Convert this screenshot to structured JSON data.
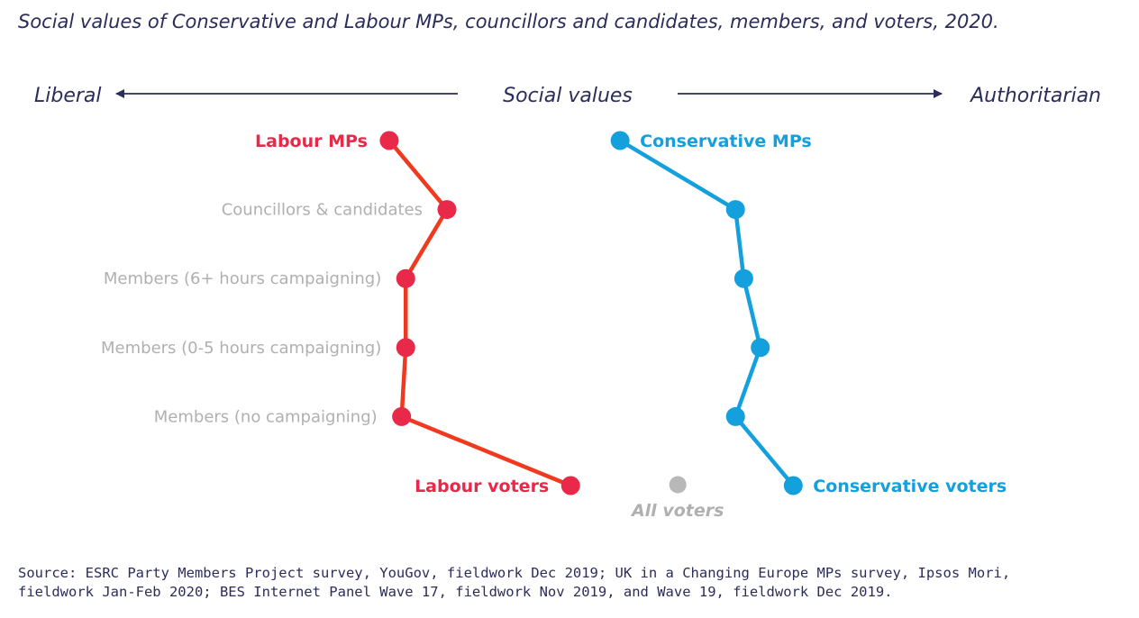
{
  "title": "Social values of Conservative and Labour MPs, councillors and candidates, members, and voters, 2020.",
  "source": [
    "Source: ESRC Party Members Project survey, YouGov, fieldwork Dec 2019; UK in a Changing Europe MPs survey, Ipsos Mori,",
    "fieldwork Jan-Feb 2020; BES Internet Panel Wave 17, fieldwork Nov 2019, and Wave 19, fieldwork Dec 2019."
  ],
  "chart_data": {
    "type": "line",
    "orientation": "horizontal-values",
    "xlabel": "Social values",
    "x_left_label": "Liberal",
    "x_right_label": "Authoritarian",
    "xlim": [
      0,
      100
    ],
    "grid": false,
    "categories": [
      "Labour MPs",
      "Councillors & candidates",
      "Members (6+ hours campaigning)",
      "Members (0-5 hours campaigning)",
      "Members (no campaigning)",
      "Labour voters"
    ],
    "category_labels_shown": [
      "",
      "Councillors & candidates",
      "Members (6+ hours campaigning)",
      "Members (0-5 hours campaigning)",
      "Members (no campaigning)",
      ""
    ],
    "series": [
      {
        "name": "Labour",
        "top_label": "Labour MPs",
        "bottom_label": "Labour voters",
        "label_side": "left",
        "color": "#e8294a",
        "line_color": "#f03a1f",
        "values": [
          33,
          40,
          35,
          35,
          34.5,
          55
        ]
      },
      {
        "name": "Conservative",
        "top_label": "Conservative MPs",
        "bottom_label": "Conservative voters",
        "label_side": "right",
        "color": "#14a0dc",
        "line_color": "#14a0dc",
        "values": [
          61,
          75,
          76,
          78,
          75,
          82
        ]
      }
    ],
    "reference": {
      "label": "All voters",
      "value": 68,
      "category": "Labour voters",
      "color": "#b8b8b8"
    }
  }
}
